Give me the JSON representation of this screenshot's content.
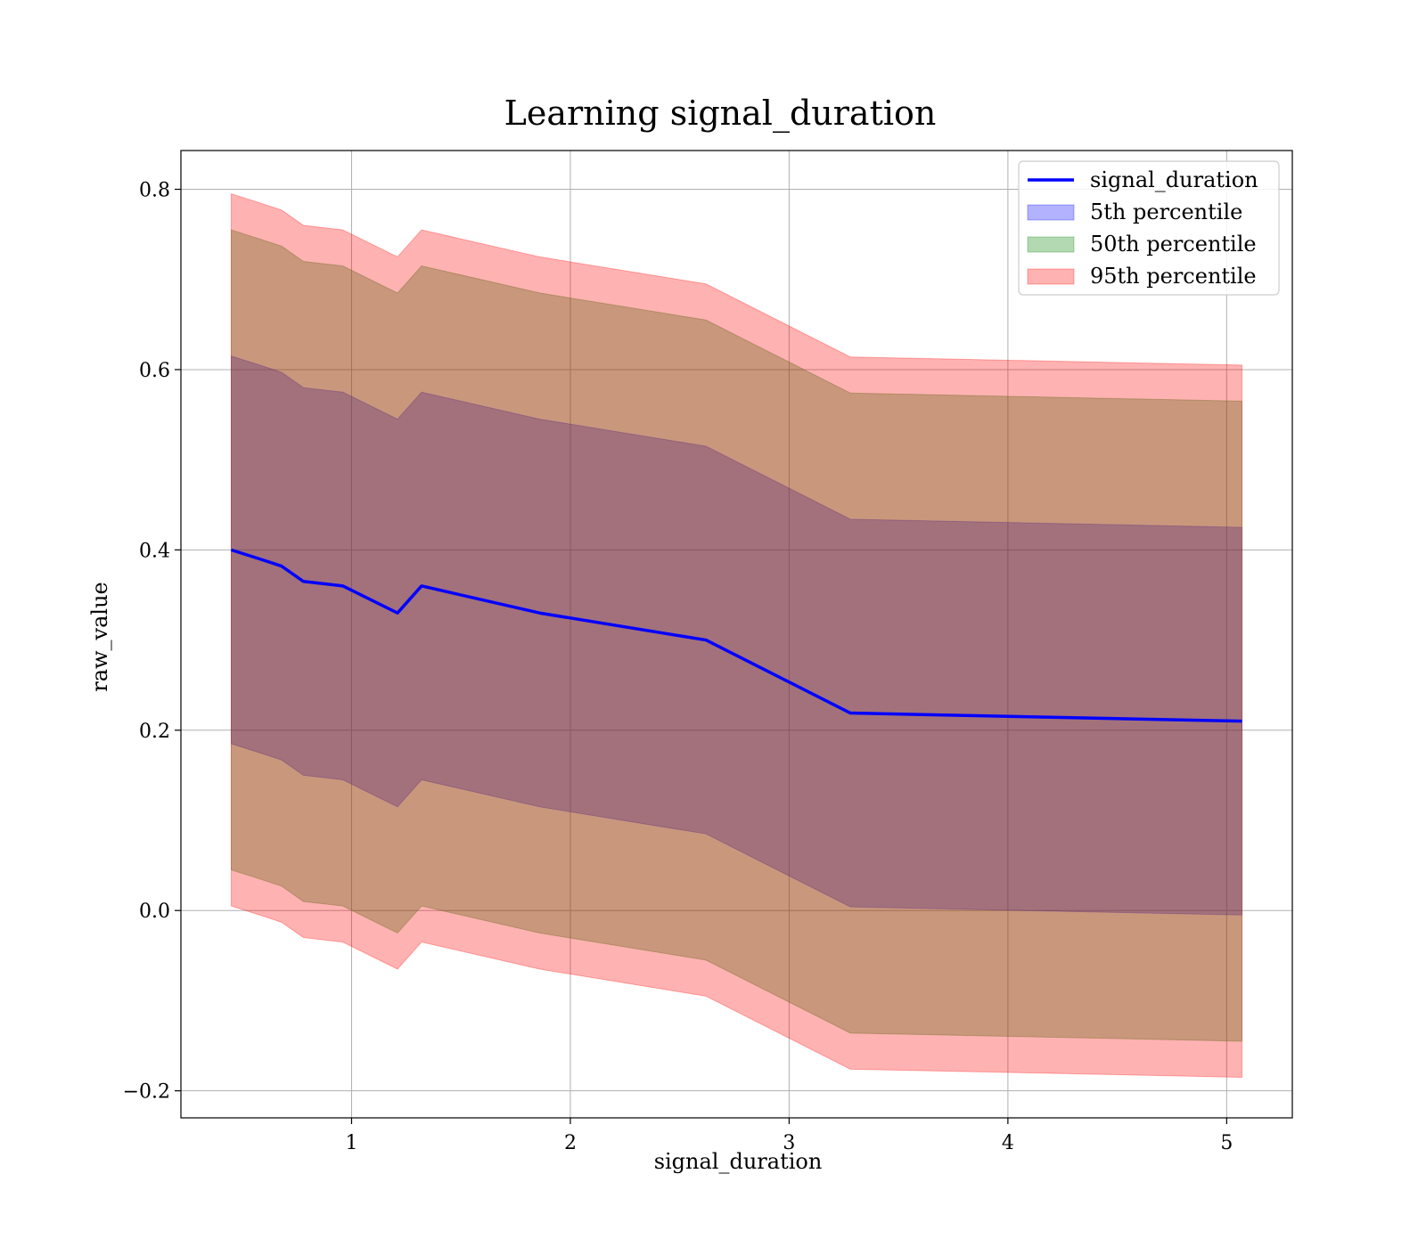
{
  "chart_data": {
    "type": "area",
    "title": "Learning signal_duration",
    "xlabel": "signal_duration",
    "ylabel": "raw_value",
    "xlim": [
      0.22,
      5.3
    ],
    "ylim": [
      -0.23,
      0.843
    ],
    "xticks": [
      1,
      2,
      3,
      4,
      5
    ],
    "yticks": [
      -0.2,
      0.0,
      0.2,
      0.4,
      0.6,
      0.8
    ],
    "ytick_labels": [
      "−0.2",
      "0.0",
      "0.2",
      "0.4",
      "0.6",
      "0.8"
    ],
    "grid": true,
    "legend_position": "top-right",
    "x": [
      0.45,
      0.58,
      0.68,
      0.78,
      0.96,
      1.21,
      1.32,
      1.86,
      2.62,
      3.28,
      5.07
    ],
    "series": [
      {
        "name": "signal_duration",
        "kind": "line",
        "color": "#0000ff",
        "values": [
          0.4,
          0.39,
          0.382,
          0.365,
          0.36,
          0.33,
          0.36,
          0.33,
          0.3,
          0.219,
          0.21
        ]
      },
      {
        "name": "5th percentile",
        "kind": "band",
        "color": "#0000ff",
        "lower": [
          0.185,
          0.175,
          0.167,
          0.15,
          0.145,
          0.115,
          0.145,
          0.115,
          0.085,
          0.004,
          -0.005
        ],
        "upper": [
          0.615,
          0.605,
          0.597,
          0.58,
          0.575,
          0.545,
          0.575,
          0.545,
          0.515,
          0.434,
          0.425
        ]
      },
      {
        "name": "50th percentile",
        "kind": "band",
        "color": "#008000",
        "lower": [
          0.045,
          0.035,
          0.027,
          0.01,
          0.005,
          -0.025,
          0.005,
          -0.025,
          -0.055,
          -0.136,
          -0.145
        ],
        "upper": [
          0.755,
          0.745,
          0.737,
          0.72,
          0.715,
          0.685,
          0.715,
          0.685,
          0.655,
          0.574,
          0.565
        ]
      },
      {
        "name": "95th percentile",
        "kind": "band",
        "color": "#ff0000",
        "lower": [
          0.005,
          -0.005,
          -0.013,
          -0.03,
          -0.035,
          -0.065,
          -0.035,
          -0.065,
          -0.095,
          -0.176,
          -0.185
        ],
        "upper": [
          0.795,
          0.785,
          0.777,
          0.76,
          0.755,
          0.725,
          0.755,
          0.725,
          0.695,
          0.614,
          0.605
        ]
      }
    ]
  }
}
